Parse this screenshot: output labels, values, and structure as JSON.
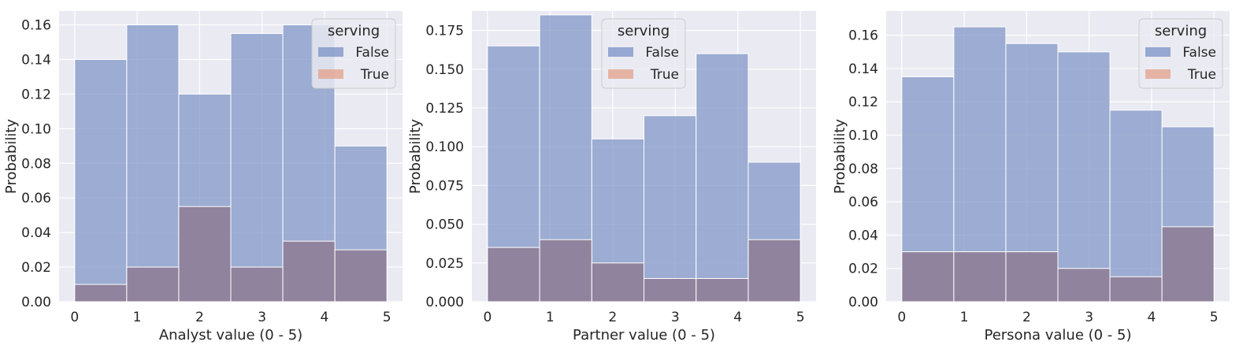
{
  "colors": {
    "background": "#eaeaf2",
    "grid": "#ffffff",
    "false_fill": "#7a92c5",
    "true_fill": "#e3a08a",
    "overlap_fill": "#8f819a",
    "bar_edge": "#ffffff"
  },
  "chart_data": [
    {
      "type": "bar",
      "title": "",
      "xlabel": "Analyst value (0 - 5)",
      "ylabel": "Probability",
      "xlim": [
        -0.25,
        5.25
      ],
      "ylim": [
        0,
        0.168
      ],
      "xticks": [
        0,
        1,
        2,
        3,
        4,
        5
      ],
      "xtick_labels": [
        "0",
        "1",
        "2",
        "3",
        "4",
        "5"
      ],
      "yticks": [
        0,
        0.02,
        0.04,
        0.06,
        0.08,
        0.1,
        0.12,
        0.14,
        0.16
      ],
      "ytick_labels": [
        "0.00",
        "0.02",
        "0.04",
        "0.06",
        "0.08",
        "0.10",
        "0.12",
        "0.14",
        "0.16"
      ],
      "bin_edges": [
        0,
        0.8333,
        1.6667,
        2.5,
        3.3333,
        4.1667,
        5
      ],
      "grid": true,
      "legend": {
        "title": "serving",
        "placement": "top-right"
      },
      "series": [
        {
          "name": "False",
          "values": [
            0.14,
            0.16,
            0.12,
            0.155,
            0.16,
            0.09
          ]
        },
        {
          "name": "True",
          "values": [
            0.01,
            0.02,
            0.055,
            0.02,
            0.035,
            0.03
          ]
        }
      ]
    },
    {
      "type": "bar",
      "title": "",
      "xlabel": "Partner value (0 - 5)",
      "ylabel": "Probability",
      "xlim": [
        -0.25,
        5.25
      ],
      "ylim": [
        0,
        0.1875
      ],
      "xticks": [
        0,
        1,
        2,
        3,
        4,
        5
      ],
      "xtick_labels": [
        "0",
        "1",
        "2",
        "3",
        "4",
        "5"
      ],
      "yticks": [
        0,
        0.025,
        0.05,
        0.075,
        0.1,
        0.125,
        0.15,
        0.175
      ],
      "ytick_labels": [
        "0.000",
        "0.025",
        "0.050",
        "0.075",
        "0.100",
        "0.125",
        "0.150",
        "0.175"
      ],
      "bin_edges": [
        0,
        0.8333,
        1.6667,
        2.5,
        3.3333,
        4.1667,
        5
      ],
      "grid": true,
      "legend": {
        "title": "serving",
        "placement": "top-center"
      },
      "series": [
        {
          "name": "False",
          "values": [
            0.165,
            0.185,
            0.105,
            0.12,
            0.16,
            0.09
          ]
        },
        {
          "name": "True",
          "values": [
            0.035,
            0.04,
            0.025,
            0.015,
            0.015,
            0.04
          ]
        }
      ]
    },
    {
      "type": "bar",
      "title": "",
      "xlabel": "Persona value (0 - 5)",
      "ylabel": "Probability",
      "xlim": [
        -0.25,
        5.25
      ],
      "ylim": [
        0,
        0.1745
      ],
      "xticks": [
        0,
        1,
        2,
        3,
        4,
        5
      ],
      "xtick_labels": [
        "0",
        "1",
        "2",
        "3",
        "4",
        "5"
      ],
      "yticks": [
        0,
        0.02,
        0.04,
        0.06,
        0.08,
        0.1,
        0.12,
        0.14,
        0.16
      ],
      "ytick_labels": [
        "0.00",
        "0.02",
        "0.04",
        "0.06",
        "0.08",
        "0.10",
        "0.12",
        "0.14",
        "0.16"
      ],
      "bin_edges": [
        0,
        0.8333,
        1.6667,
        2.5,
        3.3333,
        4.1667,
        5
      ],
      "grid": true,
      "legend": {
        "title": "serving",
        "placement": "top-right"
      },
      "series": [
        {
          "name": "False",
          "values": [
            0.135,
            0.165,
            0.155,
            0.15,
            0.115,
            0.105
          ]
        },
        {
          "name": "True",
          "values": [
            0.03,
            0.03,
            0.03,
            0.02,
            0.015,
            0.045
          ]
        }
      ]
    }
  ]
}
